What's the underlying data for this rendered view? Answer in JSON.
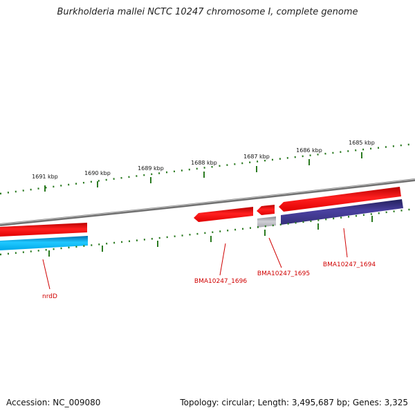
{
  "title": "Burkholderia mallei NCTC 10247 chromosome I, complete genome",
  "accession_text": "Accession: NC_009080",
  "summary_text": "Topology: circular; Length: 3,495,687 bp; Genes: 3,325",
  "ruler_labels": [
    "1691 kbp",
    "1690 kbp",
    "1689 kbp",
    "1688 kbp",
    "1687 kbp",
    "1686 kbp",
    "1685 kbp"
  ],
  "gene_labels": {
    "nrdD": "nrdD",
    "bma1696": "BMA10247_1696",
    "bma1695": "BMA10247_1695",
    "bma1694": "BMA10247_1694"
  },
  "colors": {
    "gene_red": "#ee0000",
    "gene_cyan": "#00aaee",
    "gene_navy": "#3a3080",
    "gene_grey": "#b0b0b8",
    "backbone": "#808080",
    "tick": "#2a7a20",
    "label": "#d00000"
  }
}
